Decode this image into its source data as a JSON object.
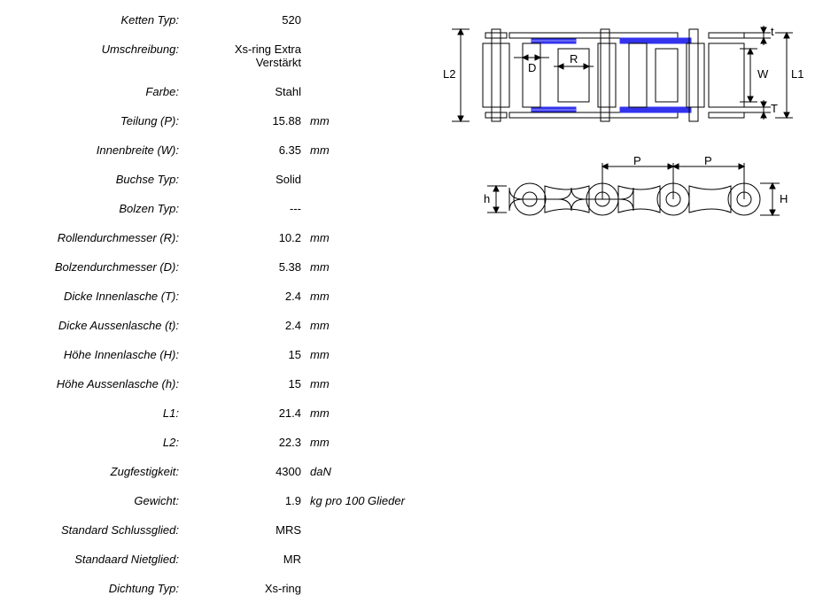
{
  "specs": [
    {
      "label": "Ketten Typ:",
      "value": "520",
      "unit": ""
    },
    {
      "label": "Umschreibung:",
      "value": "Xs-ring Extra Verstärkt",
      "unit": ""
    },
    {
      "label": "Farbe:",
      "value": "Stahl",
      "unit": ""
    },
    {
      "label": "Teilung (P):",
      "value": "15.88",
      "unit": "mm"
    },
    {
      "label": "Innenbreite (W):",
      "value": "6.35",
      "unit": "mm"
    },
    {
      "label": "Buchse Typ:",
      "value": "Solid",
      "unit": ""
    },
    {
      "label": "Bolzen Typ:",
      "value": "---",
      "unit": ""
    },
    {
      "label": "Rollendurchmesser (R):",
      "value": "10.2",
      "unit": "mm"
    },
    {
      "label": "Bolzendurchmesser (D):",
      "value": "5.38",
      "unit": "mm"
    },
    {
      "label": "Dicke Innenlasche (T):",
      "value": "2.4",
      "unit": "mm"
    },
    {
      "label": "Dicke Aussenlasche (t):",
      "value": "2.4",
      "unit": "mm"
    },
    {
      "label": "Höhe Innenlasche (H):",
      "value": "15",
      "unit": "mm"
    },
    {
      "label": "Höhe Aussenlasche (h):",
      "value": "15",
      "unit": "mm"
    },
    {
      "label": "L1:",
      "value": "21.4",
      "unit": "mm"
    },
    {
      "label": "L2:",
      "value": "22.3",
      "unit": "mm"
    },
    {
      "label": "Zugfestigkeit:",
      "value": "4300",
      "unit": "daN"
    },
    {
      "label": "Gewicht:",
      "value": "1.9",
      "unit": "kg pro 100 Glieder"
    },
    {
      "label": "Standard Schlussglied:",
      "value": "MRS",
      "unit": ""
    },
    {
      "label": "Standaard Nietglied:",
      "value": "MR",
      "unit": ""
    },
    {
      "label": "Dichtung Typ:",
      "value": "Xs-ring",
      "unit": ""
    }
  ],
  "diagram": {
    "stroke": "#000000",
    "stroke_width": 1,
    "seal_color": "#3333ee",
    "fill": "none",
    "labels_top": {
      "D": "D",
      "R": "R",
      "W": "W",
      "t": "t",
      "T": "T",
      "L1": "L1",
      "L2": "L2"
    },
    "labels_bottom": {
      "P": "P",
      "h": "h",
      "H": "H"
    }
  }
}
